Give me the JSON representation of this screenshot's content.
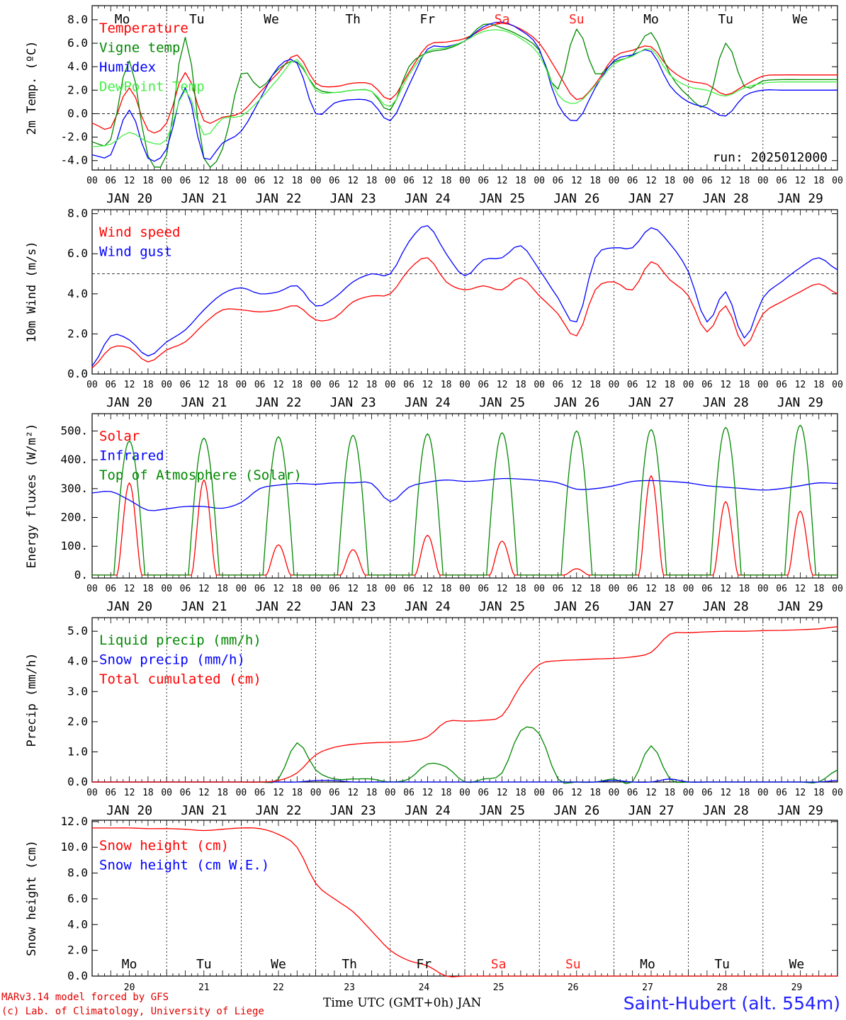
{
  "run_label": "run: 2025012000",
  "hour_ticks": [
    "00",
    "06",
    "12",
    "18"
  ],
  "date_labels": [
    "JAN 20",
    "JAN 21",
    "JAN 22",
    "JAN 23",
    "JAN 24",
    "JAN 25",
    "JAN 26",
    "JAN 27",
    "JAN 28",
    "JAN 29"
  ],
  "bottom_day_numbers": [
    "20",
    "21",
    "22",
    "23",
    "24",
    "25",
    "26",
    "27",
    "28",
    "29"
  ],
  "weekdays": [
    "Mo",
    "Tu",
    "We",
    "Th",
    "Fr",
    "Sa",
    "Su",
    "Mo",
    "Tu",
    "We"
  ],
  "weekend_color": "#ff2020",
  "footer": {
    "model": "MARv3.14 model forced by GFS",
    "lab": "(c) Lab. of Climatology, University of Liege",
    "time_axis": "Time UTC (GMT+0h) JAN",
    "station": "Saint-Hubert (alt. 554m)"
  },
  "chart_data": [
    {
      "type": "line",
      "ylabel": "2m Temp. (ºC)",
      "ylim": [
        -4.8,
        9.2
      ],
      "yticks": [
        "-4.0",
        "-2.0",
        "0.0",
        "2.0",
        "4.0",
        "6.0",
        "8.0"
      ],
      "ytick_values": [
        -4,
        -2,
        0,
        2,
        4,
        6,
        8
      ],
      "reference_line": 0,
      "x_hours": [
        0,
        6,
        12,
        18,
        24,
        30,
        36,
        42,
        48,
        54,
        60,
        66,
        72,
        78,
        84,
        90,
        96,
        102,
        108,
        114,
        120,
        126,
        132,
        138,
        144,
        150,
        156,
        162,
        168,
        174,
        180,
        186,
        192,
        198,
        204,
        210,
        216,
        222,
        228,
        234,
        240
      ],
      "series": [
        {
          "name": "Temperature",
          "color": "#ff0000",
          "values": [
            -0.8,
            -1.2,
            2.2,
            -1.4,
            -0.8,
            3.5,
            -0.6,
            -0.3,
            0.1,
            1.8,
            3.5,
            5.0,
            2.6,
            2.3,
            2.6,
            2.5,
            1.2,
            3.5,
            5.8,
            6.1,
            6.4,
            7.2,
            7.7,
            7.2,
            6.0,
            3.5,
            1.2,
            2.5,
            4.8,
            5.4,
            5.7,
            3.8,
            2.8,
            2.5,
            1.6,
            2.4,
            3.2,
            3.3,
            3.3,
            3.3,
            3.3
          ]
        },
        {
          "name": "Vigne temp",
          "color": "#008800",
          "values": [
            -2.4,
            -2.2,
            4.5,
            -3.6,
            -3.5,
            6.5,
            -3.8,
            -3.0,
            3.4,
            2.2,
            3.8,
            4.4,
            2.2,
            1.8,
            2.0,
            1.9,
            0.3,
            4.0,
            5.2,
            5.5,
            6.2,
            7.6,
            7.3,
            6.6,
            5.4,
            2.1,
            7.2,
            3.4,
            4.4,
            5.0,
            6.9,
            3.4,
            1.5,
            0.8,
            6.0,
            2.3,
            2.8,
            2.9,
            2.9,
            2.9,
            2.9
          ]
        },
        {
          "name": "Humidex",
          "color": "#0000ff",
          "values": [
            -3.5,
            -3.5,
            0.3,
            -3.8,
            -3.0,
            2.2,
            -3.8,
            -2.5,
            -1.5,
            1.2,
            4.0,
            4.3,
            0.0,
            0.9,
            1.2,
            1.0,
            -0.6,
            2.4,
            5.5,
            5.7,
            6.2,
            7.4,
            7.8,
            7.1,
            5.5,
            0.8,
            -0.6,
            2.2,
            4.5,
            5.0,
            5.3,
            2.4,
            1.0,
            0.5,
            -0.2,
            1.5,
            2.0,
            2.0,
            2.0,
            2.0,
            2.0
          ]
        },
        {
          "name": "DewPoint Temp",
          "color": "#44ee44",
          "values": [
            -2.8,
            -2.6,
            -1.6,
            -2.4,
            -2.2,
            2.0,
            -1.8,
            -0.4,
            -0.2,
            1.2,
            3.0,
            4.6,
            2.0,
            1.8,
            2.0,
            1.9,
            0.6,
            3.3,
            5.3,
            5.6,
            6.2,
            7.0,
            7.1,
            6.4,
            5.0,
            1.6,
            0.9,
            2.4,
            4.2,
            4.9,
            5.5,
            3.3,
            2.3,
            2.0,
            1.5,
            2.2,
            2.6,
            2.7,
            2.7,
            2.7,
            2.7
          ]
        }
      ]
    },
    {
      "type": "line",
      "ylabel": "10m Wind (m/s)",
      "ylim": [
        0,
        8.2
      ],
      "yticks": [
        "0.0",
        "2.0",
        "4.0",
        "6.0",
        "8.0"
      ],
      "ytick_values": [
        0,
        2,
        4,
        6,
        8
      ],
      "reference_line": 5.0,
      "x_hours": [
        0,
        6,
        12,
        18,
        24,
        30,
        36,
        42,
        48,
        54,
        60,
        66,
        72,
        78,
        84,
        90,
        96,
        102,
        108,
        114,
        120,
        126,
        132,
        138,
        144,
        150,
        156,
        162,
        168,
        174,
        180,
        186,
        192,
        198,
        204,
        210,
        216,
        222,
        228,
        234,
        240
      ],
      "series": [
        {
          "name": "Wind speed",
          "color": "#ff0000",
          "values": [
            0.3,
            1.3,
            1.3,
            0.6,
            1.2,
            1.6,
            2.5,
            3.2,
            3.2,
            3.1,
            3.2,
            3.4,
            2.7,
            2.8,
            3.6,
            3.9,
            4.0,
            5.2,
            5.8,
            4.6,
            4.2,
            4.4,
            4.2,
            4.8,
            3.9,
            3.0,
            1.9,
            4.2,
            4.6,
            4.2,
            5.6,
            4.7,
            3.9,
            2.1,
            3.4,
            1.4,
            3.0,
            3.6,
            4.1,
            4.5,
            4.0
          ]
        },
        {
          "name": "Wind gust",
          "color": "#0000ff",
          "values": [
            0.4,
            1.9,
            1.7,
            0.9,
            1.6,
            2.2,
            3.2,
            4.0,
            4.3,
            4.0,
            4.1,
            4.4,
            3.4,
            3.8,
            4.6,
            5.0,
            5.0,
            6.6,
            7.4,
            6.0,
            4.9,
            5.7,
            5.8,
            6.4,
            5.2,
            3.8,
            2.6,
            5.8,
            6.3,
            6.3,
            7.3,
            6.5,
            5.1,
            2.6,
            4.1,
            1.8,
            3.8,
            4.6,
            5.3,
            5.8,
            5.2
          ]
        }
      ]
    },
    {
      "type": "line",
      "ylabel": "Energy fluxes (W/m²)",
      "ylim": [
        -10,
        560
      ],
      "yticks": [
        "0.",
        "100.",
        "200.",
        "300.",
        "400.",
        "500."
      ],
      "ytick_values": [
        0,
        100,
        200,
        300,
        400,
        500
      ],
      "daily_peaks": {
        "Solar": [
          320,
          330,
          105,
          88,
          138,
          118,
          22,
          345,
          255,
          222
        ],
        "Top of Atmosphere (Solar)": [
          465,
          475,
          480,
          485,
          490,
          494,
          500,
          505,
          512,
          520
        ]
      },
      "infrared_x_hours": [
        0,
        6,
        12,
        18,
        24,
        30,
        36,
        42,
        48,
        54,
        60,
        66,
        72,
        78,
        84,
        90,
        96,
        102,
        108,
        114,
        120,
        126,
        132,
        138,
        144,
        150,
        156,
        162,
        168,
        174,
        180,
        186,
        192,
        198,
        204,
        210,
        216,
        222,
        228,
        234,
        240
      ],
      "series": [
        {
          "name": "Solar",
          "color": "#ff0000"
        },
        {
          "name": "Infrared",
          "color": "#0000ff",
          "values": [
            285,
            290,
            260,
            225,
            230,
            238,
            238,
            232,
            252,
            300,
            312,
            318,
            315,
            320,
            320,
            318,
            255,
            305,
            322,
            330,
            325,
            328,
            335,
            333,
            328,
            320,
            298,
            300,
            310,
            325,
            328,
            325,
            320,
            310,
            305,
            300,
            295,
            300,
            310,
            320,
            318
          ]
        },
        {
          "name": "Top of Atmosphere (Solar)",
          "color": "#008800"
        }
      ]
    },
    {
      "type": "line",
      "ylabel": "Precip (mm/h)",
      "ylim": [
        0,
        5.45
      ],
      "yticks": [
        "0.0",
        "1.0",
        "2.0",
        "3.0",
        "4.0",
        "5.0"
      ],
      "ytick_values": [
        0,
        1,
        2,
        3,
        4,
        5
      ],
      "x_hours": [
        0,
        6,
        12,
        18,
        24,
        30,
        36,
        42,
        48,
        54,
        60,
        66,
        72,
        78,
        84,
        90,
        96,
        102,
        108,
        114,
        120,
        126,
        132,
        138,
        144,
        150,
        156,
        162,
        168,
        174,
        180,
        186,
        192,
        198,
        204,
        210,
        216,
        222,
        228,
        234,
        240
      ],
      "series": [
        {
          "name": "Liquid precip (mm/h)",
          "color": "#008800",
          "values": [
            0,
            0,
            0,
            0,
            0,
            0,
            0,
            0,
            0,
            0,
            0.1,
            1.3,
            0.4,
            0.1,
            0.1,
            0.1,
            0.0,
            0.1,
            0.6,
            0.5,
            0.0,
            0.1,
            0.3,
            1.7,
            1.6,
            0.1,
            0.0,
            0.0,
            0.1,
            0.0,
            1.2,
            0.1,
            0.0,
            0.0,
            0.0,
            0.0,
            0.0,
            0.0,
            0.0,
            0.0,
            0.4
          ]
        },
        {
          "name": "Snow precip (mm/h)",
          "color": "#0000ff",
          "values": [
            0,
            0,
            0,
            0,
            0,
            0,
            0,
            0,
            0,
            0,
            0,
            0,
            0.05,
            0.05,
            0,
            0,
            0,
            0,
            0,
            0,
            0,
            0,
            0,
            0,
            0,
            0,
            0,
            0,
            0.05,
            0,
            0,
            0.1,
            0,
            0,
            0,
            0,
            0,
            0,
            0,
            0,
            0.05
          ]
        },
        {
          "name": "Total cumulated (cm)",
          "color": "#ff0000",
          "values": [
            0,
            0,
            0,
            0,
            0,
            0,
            0,
            0,
            0,
            0,
            0.05,
            0.3,
            0.9,
            1.15,
            1.25,
            1.3,
            1.32,
            1.35,
            1.5,
            2.0,
            2.02,
            2.05,
            2.2,
            3.2,
            3.9,
            4.02,
            4.05,
            4.08,
            4.1,
            4.15,
            4.3,
            4.9,
            4.95,
            4.98,
            5.0,
            5.0,
            5.02,
            5.03,
            5.05,
            5.08,
            5.15
          ]
        }
      ]
    },
    {
      "type": "line",
      "ylabel": "Snow height (cm)",
      "ylim": [
        0,
        12.1
      ],
      "yticks": [
        "0.0",
        "2.0",
        "4.0",
        "6.0",
        "8.0",
        "10.0",
        "12.0"
      ],
      "ytick_values": [
        0,
        2,
        4,
        6,
        8,
        10,
        12
      ],
      "x_hours": [
        0,
        6,
        12,
        18,
        24,
        30,
        36,
        42,
        48,
        54,
        60,
        66,
        72,
        78,
        84,
        90,
        96,
        102,
        108,
        114,
        120,
        126,
        132,
        138,
        144,
        150,
        156,
        162,
        168,
        174,
        180,
        186,
        192,
        198,
        204,
        210,
        216,
        222,
        228,
        234,
        240
      ],
      "series": [
        {
          "name": "Snow height (cm)",
          "color": "#ff0000",
          "values": [
            11.5,
            11.5,
            11.5,
            11.45,
            11.45,
            11.4,
            11.3,
            11.4,
            11.5,
            11.45,
            11.0,
            10.0,
            7.2,
            6.0,
            5.0,
            3.5,
            2.0,
            1.2,
            0.8,
            0,
            0,
            0,
            0,
            0,
            0,
            0,
            0,
            0,
            0,
            0,
            0,
            0,
            0,
            0,
            0,
            0,
            0,
            0,
            0,
            0,
            0
          ]
        },
        {
          "name": "Snow height (cm W.E.)",
          "color": "#0000ff",
          "values": []
        }
      ]
    }
  ]
}
